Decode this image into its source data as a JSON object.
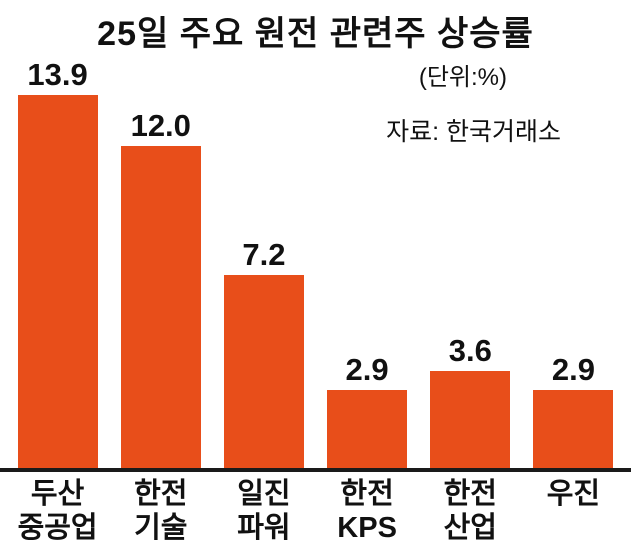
{
  "title": "25일 주요 원전 관련주 상승률",
  "unit_label": "(단위:%)",
  "source_label": "자료:  한국거래소",
  "colors": {
    "bar": "#e84e1a",
    "text": "#111111",
    "baseline": "#1a1a1a",
    "background": "#ffffff"
  },
  "chart_data": {
    "type": "bar",
    "title": "25일 주요 원전 관련주 상승률",
    "unit": "%",
    "categories": [
      "두산 중공업",
      "한전 기술",
      "일진 파워",
      "한전 KPS",
      "한전 산업",
      "우진"
    ],
    "category_lines": [
      [
        "두산",
        "중공업"
      ],
      [
        "한전",
        "기술"
      ],
      [
        "일진",
        "파워"
      ],
      [
        "한전",
        "KPS"
      ],
      [
        "한전",
        "산업"
      ],
      [
        "우진"
      ]
    ],
    "values": [
      13.9,
      12.0,
      7.2,
      2.9,
      3.6,
      2.9
    ],
    "value_labels": [
      "13.9",
      "12.0",
      "7.2",
      "2.9",
      "3.6",
      "2.9"
    ],
    "xlabel": "",
    "ylabel": "",
    "ylim": [
      0,
      13.9
    ],
    "grid": false,
    "legend": false,
    "source": "한국거래소"
  }
}
